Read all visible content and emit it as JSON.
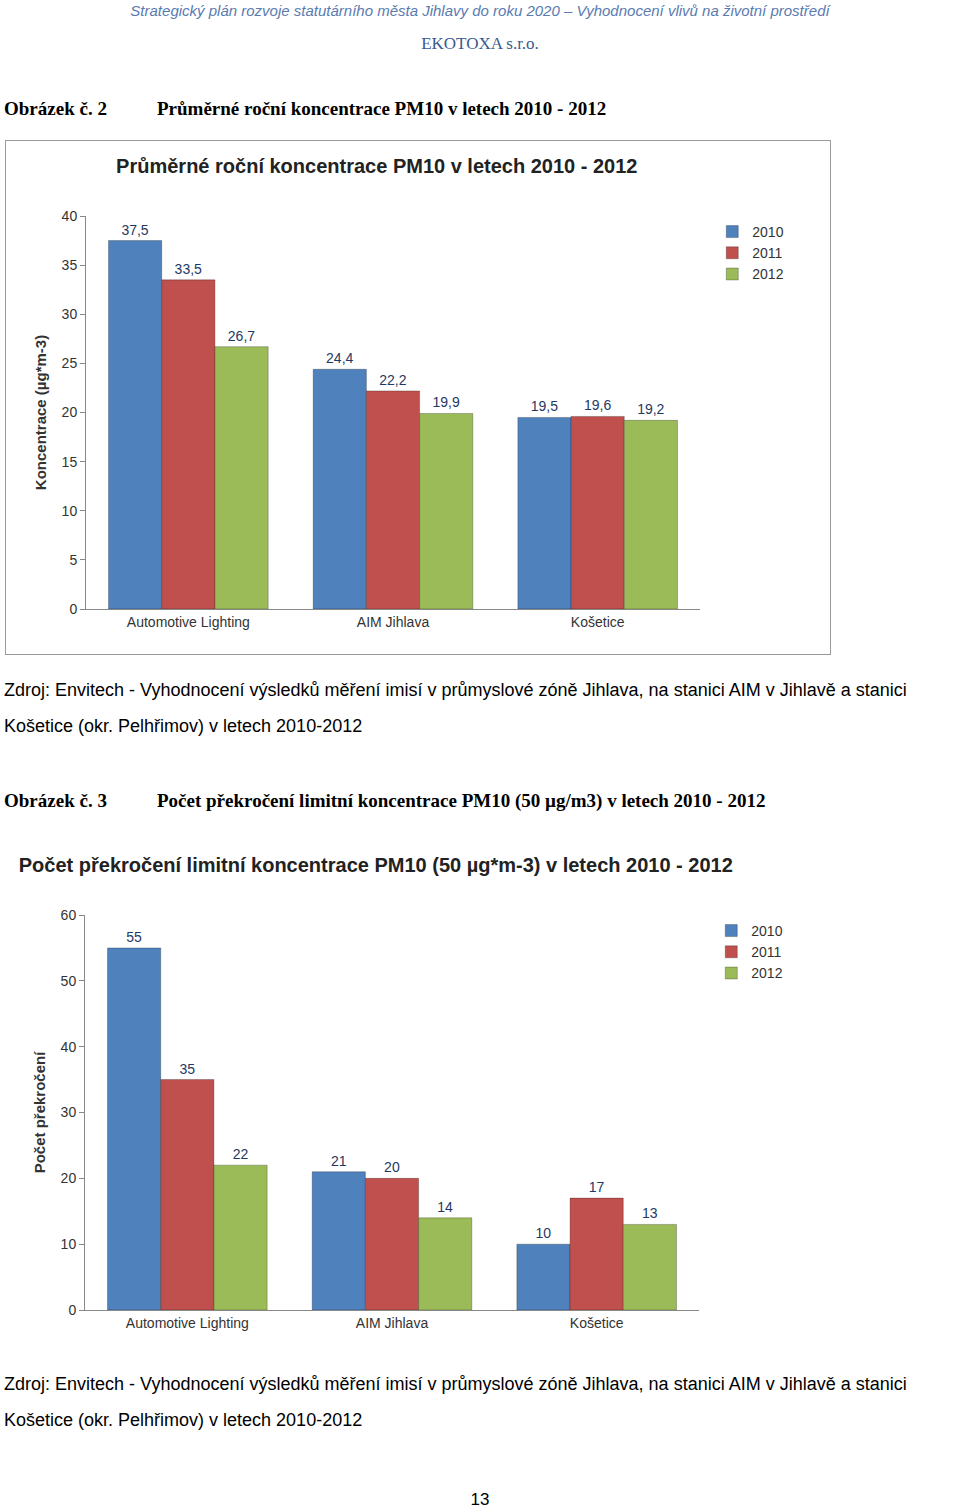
{
  "header": {
    "title": "Strategický plán rozvoje statutárního města Jihlavy do roku 2020 – Vyhodnocení vlivů na životní prostředí",
    "subtitle": "EKOTOXA s.r.o."
  },
  "figures": [
    {
      "label": "Obrázek č. 2",
      "caption": "Průměrné roční koncentrace PM10 v letech 2010 - 2012",
      "source": "Zdroj: Envitech - Vyhodnocení výsledků měření imisí v průmyslové zóně Jihlava, na stanici AIM v Jihlavě a stanici Košetice (okr. Pelhřimov) v letech 2010-2012"
    },
    {
      "label": "Obrázek č. 3",
      "caption": "Počet překročení limitní koncentrace PM10 (50 µg/m3) v letech 2010 - 2012",
      "source": "Zdroj: Envitech - Vyhodnocení výsledků měření imisí v průmyslové zóně Jihlava, na stanici AIM v Jihlavě a stanici Košetice (okr. Pelhřimov) v letech 2010-2012"
    }
  ],
  "chart_data": [
    {
      "type": "bar",
      "title": "Průměrné roční koncentrace PM10 v letech 2010 - 2012",
      "y_label": "Koncentrace (µg*m-3)",
      "categories": [
        "Automotive Lighting",
        "AIM Jihlava",
        "Košetice"
      ],
      "series": [
        {
          "name": "2010",
          "color": "#4f81bd",
          "values": [
            37.5,
            24.4,
            19.5
          ],
          "value_labels": [
            "37,5",
            "24,4",
            "19,5"
          ]
        },
        {
          "name": "2011",
          "color": "#c0504d",
          "values": [
            33.5,
            22.2,
            19.6
          ],
          "value_labels": [
            "33,5",
            "22,2",
            "19,6"
          ]
        },
        {
          "name": "2012",
          "color": "#9bbb59",
          "values": [
            26.7,
            19.9,
            19.2
          ],
          "value_labels": [
            "26,7",
            "19,9",
            "19,2"
          ]
        }
      ],
      "ylim": [
        0,
        40
      ],
      "yticks": [
        0,
        5,
        10,
        15,
        20,
        25,
        30,
        35,
        40
      ],
      "grid": false,
      "legend": "top right",
      "data_labels": true
    },
    {
      "type": "bar",
      "title": "Počet překročení limitní koncentrace PM10 (50 µg*m-3) v letech 2010 - 2012",
      "y_label": "Počet překročení",
      "categories": [
        "Automotive Lighting",
        "AIM Jihlava",
        "Košetice"
      ],
      "series": [
        {
          "name": "2010",
          "color": "#4f81bd",
          "values": [
            55,
            21,
            10
          ]
        },
        {
          "name": "2011",
          "color": "#c0504d",
          "values": [
            35,
            20,
            17
          ]
        },
        {
          "name": "2012",
          "color": "#9bbb59",
          "values": [
            22,
            14,
            13
          ]
        }
      ],
      "ylim": [
        0,
        60
      ],
      "yticks": [
        0,
        10,
        20,
        30,
        40,
        50,
        60
      ],
      "grid": false,
      "legend": "top right",
      "data_labels": true
    }
  ],
  "page_number": 13
}
